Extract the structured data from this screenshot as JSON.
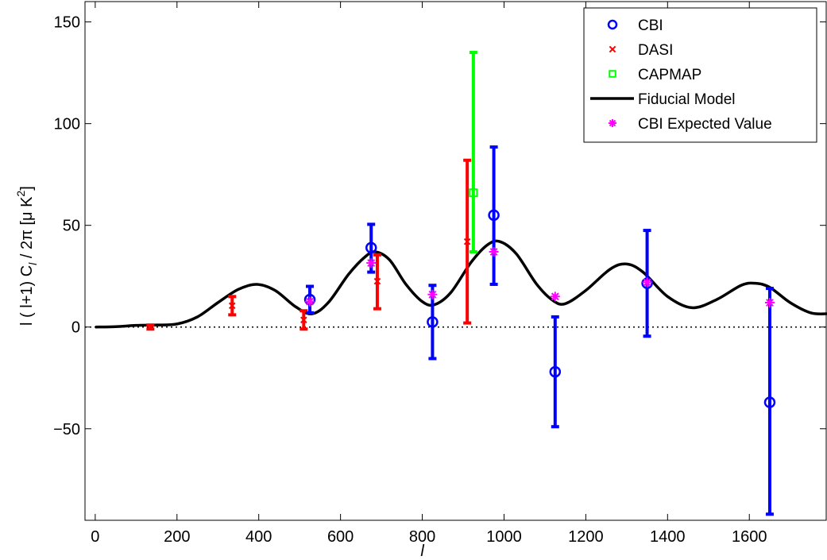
{
  "chart_data": {
    "type": "scatter",
    "xlabel": "l",
    "ylabel_parts": [
      "l ( l+1) C",
      "l",
      " / 2π [μ K",
      "2",
      "]"
    ],
    "xlim": [
      -25,
      1790
    ],
    "ylim": [
      -95,
      160
    ],
    "xticks": [
      0,
      200,
      400,
      600,
      800,
      1000,
      1200,
      1400,
      1600
    ],
    "yticks": [
      -50,
      0,
      50,
      100,
      150
    ],
    "ytick_labels": [
      "−50",
      "0",
      "50",
      "100",
      "150"
    ],
    "grid": false,
    "legend_position": "top-right",
    "legend": [
      {
        "label": "CBI",
        "marker": "circle",
        "color": "#0000ff"
      },
      {
        "label": "DASI",
        "marker": "x",
        "color": "#ff0000"
      },
      {
        "label": "CAPMAP",
        "marker": "square",
        "color": "#00ff00"
      },
      {
        "label": "Fiducial Model",
        "marker": "line",
        "color": "#000000"
      },
      {
        "label": "CBI Expected Value",
        "marker": "star",
        "color": "#ff00ff"
      }
    ],
    "series": [
      {
        "name": "CBI",
        "color": "#0000ff",
        "marker": "circle",
        "points": [
          {
            "x": 525,
            "y": 13.5,
            "lo": 7,
            "hi": 20
          },
          {
            "x": 675,
            "y": 39,
            "lo": 27,
            "hi": 50.5
          },
          {
            "x": 825,
            "y": 2.5,
            "lo": -15.5,
            "hi": 20.5
          },
          {
            "x": 975,
            "y": 55,
            "lo": 21,
            "hi": 88.5
          },
          {
            "x": 1125,
            "y": -22,
            "lo": -49,
            "hi": 5
          },
          {
            "x": 1350,
            "y": 21.5,
            "lo": -4.5,
            "hi": 47.5
          },
          {
            "x": 1650,
            "y": -37,
            "lo": -92,
            "hi": 19
          }
        ]
      },
      {
        "name": "DASI",
        "color": "#ff0000",
        "marker": "x",
        "points": [
          {
            "x": 135,
            "y": 0,
            "lo": -1,
            "hi": 1
          },
          {
            "x": 335,
            "y": 10.5,
            "lo": 6,
            "hi": 15
          },
          {
            "x": 510,
            "y": 3.5,
            "lo": -1,
            "hi": 8
          },
          {
            "x": 690,
            "y": 22.5,
            "lo": 9,
            "hi": 35.5
          },
          {
            "x": 910,
            "y": 42,
            "lo": 2,
            "hi": 82
          }
        ]
      },
      {
        "name": "CAPMAP",
        "color": "#00ff00",
        "marker": "square",
        "points": [
          {
            "x": 925,
            "y": 66,
            "lo": 37,
            "hi": 135
          }
        ]
      },
      {
        "name": "CBI Expected Value",
        "color": "#ff00ff",
        "marker": "star",
        "points": [
          {
            "x": 525,
            "y": 12.5
          },
          {
            "x": 675,
            "y": 31.5
          },
          {
            "x": 825,
            "y": 16
          },
          {
            "x": 975,
            "y": 37
          },
          {
            "x": 1125,
            "y": 15
          },
          {
            "x": 1350,
            "y": 22
          },
          {
            "x": 1650,
            "y": 12
          }
        ]
      },
      {
        "name": "Fiducial Model",
        "color": "#000000",
        "marker": "line",
        "points": [
          {
            "x": 0,
            "y": 0
          },
          {
            "x": 50,
            "y": 0.2
          },
          {
            "x": 100,
            "y": 0.8
          },
          {
            "x": 150,
            "y": 1.0
          },
          {
            "x": 200,
            "y": 1.5
          },
          {
            "x": 250,
            "y": 5
          },
          {
            "x": 300,
            "y": 12
          },
          {
            "x": 350,
            "y": 18.5
          },
          {
            "x": 395,
            "y": 21
          },
          {
            "x": 440,
            "y": 18
          },
          {
            "x": 490,
            "y": 10
          },
          {
            "x": 530,
            "y": 6.5
          },
          {
            "x": 570,
            "y": 12
          },
          {
            "x": 620,
            "y": 26
          },
          {
            "x": 660,
            "y": 34.5
          },
          {
            "x": 685,
            "y": 37
          },
          {
            "x": 720,
            "y": 33
          },
          {
            "x": 760,
            "y": 21
          },
          {
            "x": 800,
            "y": 12.5
          },
          {
            "x": 830,
            "y": 11
          },
          {
            "x": 870,
            "y": 17
          },
          {
            "x": 920,
            "y": 32
          },
          {
            "x": 960,
            "y": 40.5
          },
          {
            "x": 990,
            "y": 42
          },
          {
            "x": 1030,
            "y": 36
          },
          {
            "x": 1080,
            "y": 21
          },
          {
            "x": 1120,
            "y": 13
          },
          {
            "x": 1150,
            "y": 11.5
          },
          {
            "x": 1200,
            "y": 18
          },
          {
            "x": 1260,
            "y": 28.5
          },
          {
            "x": 1300,
            "y": 31
          },
          {
            "x": 1340,
            "y": 27
          },
          {
            "x": 1400,
            "y": 15
          },
          {
            "x": 1460,
            "y": 9.5
          },
          {
            "x": 1520,
            "y": 13.5
          },
          {
            "x": 1580,
            "y": 20.5
          },
          {
            "x": 1615,
            "y": 21.5
          },
          {
            "x": 1650,
            "y": 19.5
          },
          {
            "x": 1700,
            "y": 12
          },
          {
            "x": 1750,
            "y": 7
          },
          {
            "x": 1790,
            "y": 6.5
          }
        ]
      }
    ]
  }
}
